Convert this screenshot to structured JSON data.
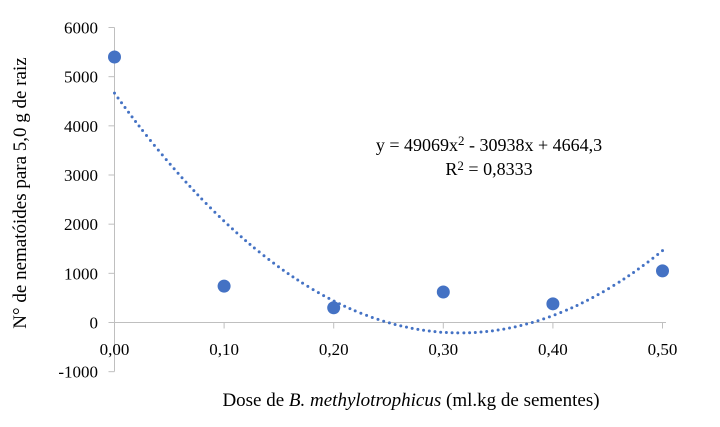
{
  "chart_data": {
    "type": "scatter",
    "x": [
      0.0,
      0.1,
      0.2,
      0.3,
      0.4,
      0.5
    ],
    "y": [
      5400,
      740,
      300,
      620,
      380,
      1050
    ],
    "title": "",
    "xlabel": "Dose de B. methylotrophicus (ml.kg de sementes)",
    "ylabel": "N° de nematóides para 5,0 g de raiz",
    "xlim": [
      0,
      0.5
    ],
    "ylim": [
      -1000,
      6000
    ],
    "grid": false,
    "legend": "none",
    "x_ticks": {
      "values": [
        0.0,
        0.1,
        0.2,
        0.3,
        0.4,
        0.5
      ],
      "labels": [
        "0,00",
        "0,10",
        "0,20",
        "0,30",
        "0,40",
        "0,50"
      ]
    },
    "y_ticks": {
      "values": [
        6000,
        5000,
        4000,
        3000,
        2000,
        1000,
        0,
        -1000
      ],
      "labels": [
        "6000",
        "5000",
        "4000",
        "3000",
        "2000",
        "1000",
        "0",
        "-1000"
      ]
    },
    "trendline": {
      "kind": "polynomial-degree-2",
      "a": 49069,
      "b": -30938,
      "c": 4664.3,
      "equation_text": "y = 49069x² - 30938x + 4664,3",
      "r2_text": "R² = 0,8333",
      "style": "dotted"
    },
    "marker_color": "#4472C4",
    "trendline_color": "#4472C4",
    "axis_color": "#BFBFBF",
    "text_color": "#000000"
  },
  "labels": {
    "y_axis_title": "N° de nematóides para 5,0 g de raiz",
    "x_axis_title_prefix": "Dose de ",
    "x_axis_title_italic": "B. methylotrophicus",
    "x_axis_title_suffix": " (ml.kg de sementes)",
    "equation_prefix": "y = 49069x",
    "equation_sup": "2",
    "equation_suffix": " - 30938x + 4664,3",
    "r2_prefix": "R",
    "r2_sup": "2",
    "r2_suffix": " = 0,8333"
  }
}
